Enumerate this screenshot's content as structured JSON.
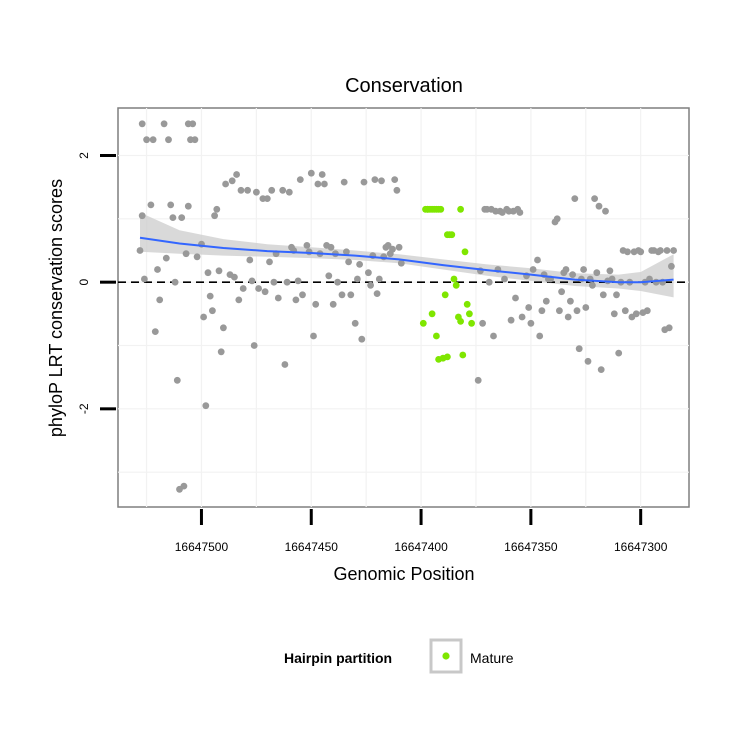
{
  "chart_data": {
    "type": "scatter",
    "title": "Conservation",
    "xlabel": "Genomic Position",
    "ylabel": "phyloP LRT conservation scores",
    "x_reversed": true,
    "xlim": [
      16647278,
      16647538
    ],
    "ylim": [
      -3.55,
      2.75
    ],
    "x_ticks": [
      16647500,
      16647450,
      16647400,
      16647350,
      16647300
    ],
    "x_tick_labels": [
      "16647500",
      "16647450",
      "16647400",
      "16647350",
      "16647300"
    ],
    "y_ticks": [
      2,
      0,
      -2
    ],
    "y_tick_labels": [
      "2",
      "0",
      "-2"
    ],
    "grid": true,
    "reference_line": {
      "y": 0,
      "style": "dashed"
    },
    "colors": {
      "Other": "#999999",
      "Mature": "#7fe600",
      "fit": "#3366ff",
      "band": "#cccccc"
    },
    "series": [
      {
        "name": "Other",
        "legend": false,
        "points": [
          [
            16647527,
            2.5
          ],
          [
            16647525,
            2.25
          ],
          [
            16647522,
            2.25
          ],
          [
            16647517,
            2.5
          ],
          [
            16647515,
            2.25
          ],
          [
            16647506,
            2.5
          ],
          [
            16647504,
            2.5
          ],
          [
            16647503,
            2.25
          ],
          [
            16647505,
            2.25
          ],
          [
            16647528,
            0.5
          ],
          [
            16647527,
            1.05
          ],
          [
            16647526,
            0.05
          ],
          [
            16647523,
            1.22
          ],
          [
            16647521,
            -0.78
          ],
          [
            16647520,
            0.2
          ],
          [
            16647519,
            -0.28
          ],
          [
            16647516,
            0.38
          ],
          [
            16647514,
            1.22
          ],
          [
            16647513,
            1.02
          ],
          [
            16647512,
            0.0
          ],
          [
            16647511,
            -1.55
          ],
          [
            16647510,
            -3.27
          ],
          [
            16647508,
            -3.22
          ],
          [
            16647509,
            1.02
          ],
          [
            16647507,
            0.45
          ],
          [
            16647506,
            1.2
          ],
          [
            16647502,
            0.4
          ],
          [
            16647500,
            0.6
          ],
          [
            16647499,
            -0.55
          ],
          [
            16647498,
            -1.95
          ],
          [
            16647497,
            0.15
          ],
          [
            16647496,
            -0.22
          ],
          [
            16647495,
            -0.45
          ],
          [
            16647494,
            1.05
          ],
          [
            16647493,
            1.15
          ],
          [
            16647492,
            0.18
          ],
          [
            16647491,
            -1.1
          ],
          [
            16647490,
            -0.72
          ],
          [
            16647489,
            1.55
          ],
          [
            16647487,
            0.12
          ],
          [
            16647486,
            1.6
          ],
          [
            16647485,
            0.08
          ],
          [
            16647484,
            1.7
          ],
          [
            16647483,
            -0.28
          ],
          [
            16647482,
            1.45
          ],
          [
            16647481,
            -0.1
          ],
          [
            16647479,
            1.45
          ],
          [
            16647478,
            0.35
          ],
          [
            16647477,
            0.02
          ],
          [
            16647476,
            -1.0
          ],
          [
            16647475,
            1.42
          ],
          [
            16647474,
            -0.1
          ],
          [
            16647472,
            1.32
          ],
          [
            16647471,
            -0.15
          ],
          [
            16647470,
            1.32
          ],
          [
            16647469,
            0.32
          ],
          [
            16647468,
            1.45
          ],
          [
            16647467,
            0.0
          ],
          [
            16647466,
            0.45
          ],
          [
            16647465,
            -0.25
          ],
          [
            16647463,
            1.45
          ],
          [
            16647462,
            -1.3
          ],
          [
            16647461,
            0.0
          ],
          [
            16647460,
            1.42
          ],
          [
            16647459,
            0.55
          ],
          [
            16647458,
            0.5
          ],
          [
            16647457,
            -0.28
          ],
          [
            16647456,
            0.02
          ],
          [
            16647455,
            1.62
          ],
          [
            16647454,
            -0.2
          ],
          [
            16647452,
            0.58
          ],
          [
            16647451,
            0.48
          ],
          [
            16647450,
            1.72
          ],
          [
            16647449,
            -0.85
          ],
          [
            16647448,
            -0.35
          ],
          [
            16647447,
            1.55
          ],
          [
            16647446,
            0.45
          ],
          [
            16647445,
            1.7
          ],
          [
            16647444,
            1.55
          ],
          [
            16647443,
            0.58
          ],
          [
            16647442,
            0.1
          ],
          [
            16647441,
            0.55
          ],
          [
            16647440,
            -0.35
          ],
          [
            16647439,
            0.45
          ],
          [
            16647438,
            0.0
          ],
          [
            16647436,
            -0.2
          ],
          [
            16647435,
            1.58
          ],
          [
            16647434,
            0.48
          ],
          [
            16647433,
            0.32
          ],
          [
            16647432,
            -0.2
          ],
          [
            16647430,
            -0.65
          ],
          [
            16647429,
            0.05
          ],
          [
            16647428,
            0.28
          ],
          [
            16647427,
            -0.9
          ],
          [
            16647426,
            1.58
          ],
          [
            16647424,
            0.15
          ],
          [
            16647423,
            -0.05
          ],
          [
            16647422,
            0.42
          ],
          [
            16647421,
            1.62
          ],
          [
            16647420,
            -0.18
          ],
          [
            16647419,
            0.05
          ],
          [
            16647418,
            1.6
          ],
          [
            16647417,
            0.4
          ],
          [
            16647416,
            0.55
          ],
          [
            16647415,
            0.58
          ],
          [
            16647414,
            0.45
          ],
          [
            16647413,
            0.52
          ],
          [
            16647412,
            1.62
          ],
          [
            16647411,
            1.45
          ],
          [
            16647410,
            0.55
          ],
          [
            16647409,
            0.3
          ],
          [
            16647374,
            -1.55
          ],
          [
            16647373,
            0.18
          ],
          [
            16647372,
            -0.65
          ],
          [
            16647371,
            1.15
          ],
          [
            16647370,
            1.15
          ],
          [
            16647369,
            0.0
          ],
          [
            16647368,
            1.15
          ],
          [
            16647367,
            -0.85
          ],
          [
            16647366,
            1.12
          ],
          [
            16647365,
            0.2
          ],
          [
            16647364,
            1.12
          ],
          [
            16647363,
            1.1
          ],
          [
            16647362,
            0.05
          ],
          [
            16647361,
            1.15
          ],
          [
            16647360,
            1.12
          ],
          [
            16647359,
            -0.6
          ],
          [
            16647358,
            1.12
          ],
          [
            16647357,
            -0.25
          ],
          [
            16647356,
            1.15
          ],
          [
            16647355,
            1.1
          ],
          [
            16647354,
            -0.55
          ],
          [
            16647352,
            0.1
          ],
          [
            16647351,
            -0.4
          ],
          [
            16647350,
            -0.65
          ],
          [
            16647349,
            0.2
          ],
          [
            16647347,
            0.35
          ],
          [
            16647346,
            -0.85
          ],
          [
            16647345,
            -0.45
          ],
          [
            16647344,
            0.12
          ],
          [
            16647343,
            -0.3
          ],
          [
            16647342,
            0.05
          ],
          [
            16647341,
            0.05
          ],
          [
            16647339,
            0.95
          ],
          [
            16647338,
            1.0
          ],
          [
            16647337,
            -0.45
          ],
          [
            16647336,
            -0.15
          ],
          [
            16647335,
            0.15
          ],
          [
            16647334,
            0.2
          ],
          [
            16647333,
            -0.55
          ],
          [
            16647332,
            -0.3
          ],
          [
            16647331,
            0.12
          ],
          [
            16647330,
            1.32
          ],
          [
            16647329,
            -0.45
          ],
          [
            16647328,
            -1.05
          ],
          [
            16647327,
            0.05
          ],
          [
            16647326,
            0.2
          ],
          [
            16647325,
            -0.4
          ],
          [
            16647324,
            -1.25
          ],
          [
            16647323,
            0.05
          ],
          [
            16647322,
            -0.05
          ],
          [
            16647321,
            1.32
          ],
          [
            16647320,
            0.15
          ],
          [
            16647319,
            1.2
          ],
          [
            16647318,
            -1.38
          ],
          [
            16647317,
            -0.2
          ],
          [
            16647316,
            1.12
          ],
          [
            16647315,
            0.02
          ],
          [
            16647314,
            0.18
          ],
          [
            16647313,
            0.05
          ],
          [
            16647312,
            -0.5
          ],
          [
            16647311,
            -0.2
          ],
          [
            16647310,
            -1.12
          ],
          [
            16647309,
            0.0
          ],
          [
            16647308,
            0.5
          ],
          [
            16647307,
            -0.45
          ],
          [
            16647306,
            0.48
          ],
          [
            16647305,
            0.0
          ],
          [
            16647304,
            -0.55
          ],
          [
            16647303,
            0.48
          ],
          [
            16647302,
            -0.5
          ],
          [
            16647301,
            0.5
          ],
          [
            16647300,
            0.48
          ],
          [
            16647299,
            -0.48
          ],
          [
            16647298,
            0.0
          ],
          [
            16647297,
            -0.45
          ],
          [
            16647296,
            0.05
          ],
          [
            16647295,
            0.5
          ],
          [
            16647294,
            0.5
          ],
          [
            16647293,
            0.0
          ],
          [
            16647292,
            0.48
          ],
          [
            16647291,
            0.5
          ],
          [
            16647290,
            0.0
          ],
          [
            16647289,
            -0.75
          ],
          [
            16647288,
            0.5
          ],
          [
            16647287,
            -0.72
          ],
          [
            16647286,
            0.25
          ],
          [
            16647285,
            0.5
          ]
        ]
      },
      {
        "name": "Mature",
        "legend": true,
        "points": [
          [
            16647398,
            1.15
          ],
          [
            16647397,
            1.15
          ],
          [
            16647396,
            1.15
          ],
          [
            16647395,
            1.15
          ],
          [
            16647394,
            1.15
          ],
          [
            16647393,
            1.15
          ],
          [
            16647392,
            1.15
          ],
          [
            16647391,
            1.15
          ],
          [
            16647389,
            -0.2
          ],
          [
            16647388,
            0.75
          ],
          [
            16647387,
            0.75
          ],
          [
            16647386,
            0.75
          ],
          [
            16647385,
            0.05
          ],
          [
            16647384,
            -0.05
          ],
          [
            16647383,
            -0.55
          ],
          [
            16647382,
            1.15
          ],
          [
            16647381,
            -1.15
          ],
          [
            16647380,
            0.48
          ],
          [
            16647379,
            -0.35
          ],
          [
            16647378,
            -0.5
          ],
          [
            16647377,
            -0.65
          ],
          [
            16647399,
            -0.65
          ],
          [
            16647395,
            -0.5
          ],
          [
            16647393,
            -0.85
          ],
          [
            16647392,
            -1.22
          ],
          [
            16647390,
            -1.2
          ],
          [
            16647388,
            -1.18
          ],
          [
            16647382,
            -0.62
          ],
          [
            16647397,
            1.15
          ]
        ]
      }
    ],
    "smooth": {
      "method": "loess",
      "x": [
        16647528,
        16647510,
        16647490,
        16647470,
        16647450,
        16647430,
        16647410,
        16647390,
        16647370,
        16647350,
        16647330,
        16647310,
        16647300,
        16647285
      ],
      "y": [
        0.7,
        0.61,
        0.54,
        0.49,
        0.46,
        0.42,
        0.36,
        0.27,
        0.19,
        0.12,
        0.04,
        0.0,
        0.0,
        0.04
      ],
      "lower": [
        0.48,
        0.45,
        0.42,
        0.4,
        0.38,
        0.35,
        0.3,
        0.2,
        0.1,
        0.02,
        -0.06,
        -0.1,
        -0.14,
        -0.24
      ],
      "upper": [
        1.1,
        0.82,
        0.68,
        0.6,
        0.55,
        0.5,
        0.44,
        0.36,
        0.28,
        0.22,
        0.14,
        0.12,
        0.16,
        0.44
      ]
    },
    "legend": {
      "title": "Hairpin partition",
      "entries": [
        "Mature"
      ],
      "position": "bottom"
    }
  }
}
